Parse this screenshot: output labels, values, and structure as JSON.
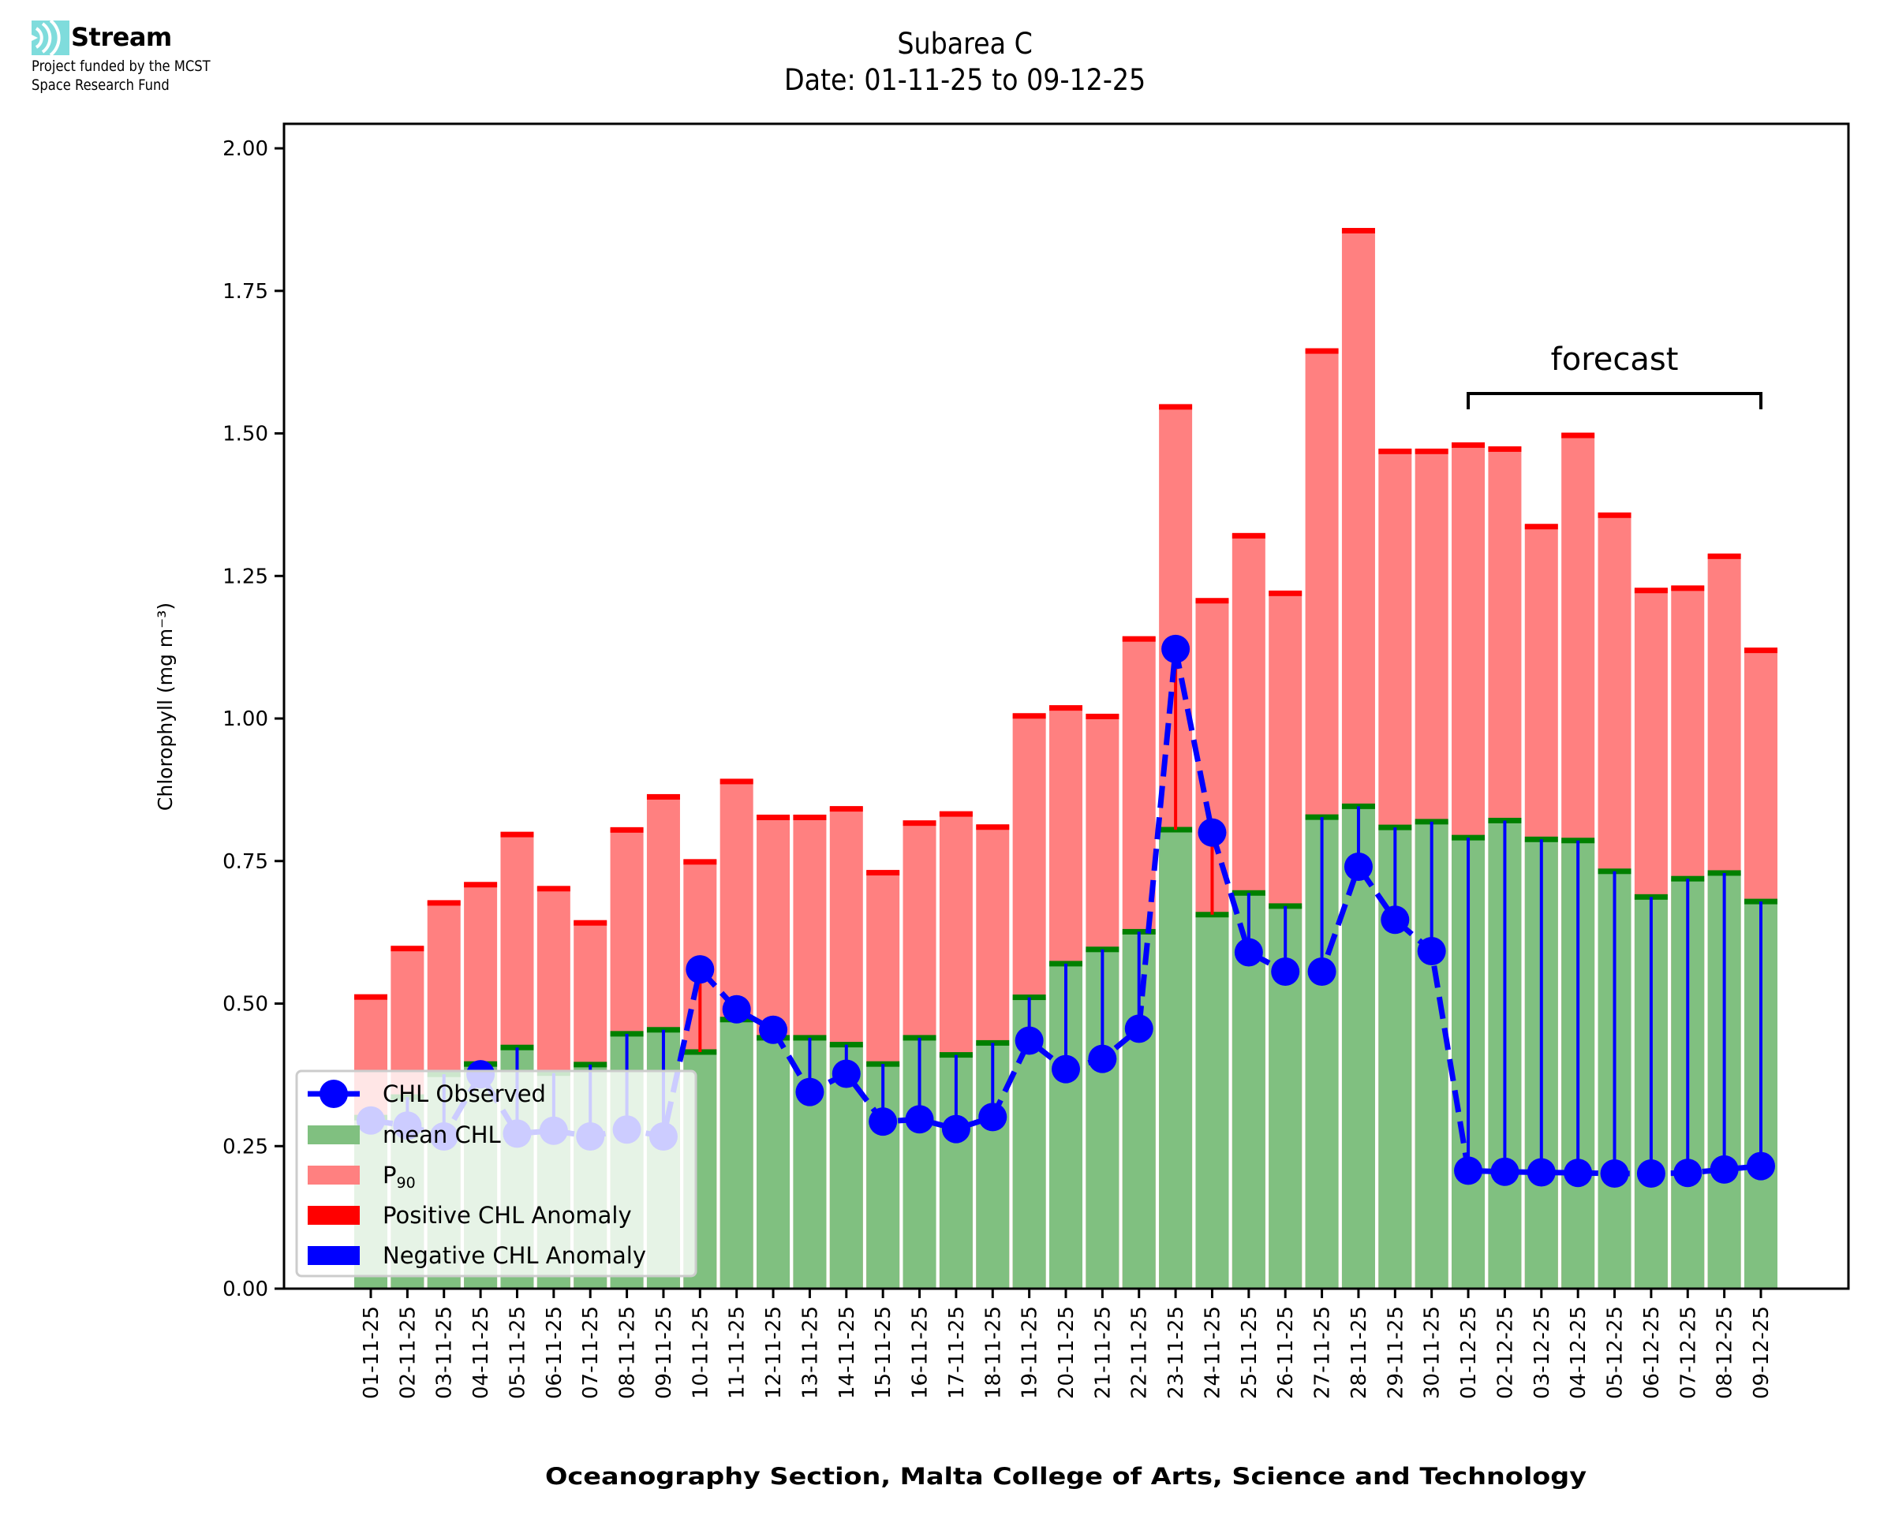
{
  "logo": {
    "name": "Stream",
    "subtitle_lines": [
      "Project funded by the MCST",
      "Space Research Fund"
    ],
    "icon": "stream-waves-icon",
    "color": "#7fdcdc"
  },
  "colors": {
    "mean": "#80c080",
    "mean_cap": "#008000",
    "p90": "#ff8080",
    "p90_cap": "#ff0000",
    "positive_anomaly": "#ff0000",
    "negative_anomaly": "#0000ff",
    "observed": "#0000ff"
  },
  "chart_data": {
    "type": "bar",
    "title": "Subarea C",
    "subtitle": "Date: 01-11-25 to 09-12-25",
    "xlabel": "Oceanography Section, Malta College of Arts, Science and Technology",
    "ylabel": "Chlorophyll (mg m⁻³)",
    "ylim": [
      0,
      2.043
    ],
    "yticks": [
      0.0,
      0.25,
      0.5,
      0.75,
      1.0,
      1.25,
      1.5,
      1.75,
      2.0
    ],
    "ytick_labels": [
      "0.00",
      "0.25",
      "0.50",
      "0.75",
      "1.00",
      "1.25",
      "1.50",
      "1.75",
      "2.00"
    ],
    "grid": false,
    "legend_position": "lower-left",
    "legend": [
      {
        "label": "CHL Observed",
        "kind": "line-marker"
      },
      {
        "label": "mean CHL",
        "kind": "patch-mean"
      },
      {
        "label": "P",
        "sub": "90",
        "kind": "patch-p90"
      },
      {
        "label": "Positive CHL Anomaly",
        "kind": "patch-pos"
      },
      {
        "label": "Negative CHL Anomaly",
        "kind": "patch-neg"
      }
    ],
    "categories": [
      "01-11-25",
      "02-11-25",
      "03-11-25",
      "04-11-25",
      "05-11-25",
      "06-11-25",
      "07-11-25",
      "08-11-25",
      "09-11-25",
      "10-11-25",
      "11-11-25",
      "12-11-25",
      "13-11-25",
      "14-11-25",
      "15-11-25",
      "16-11-25",
      "17-11-25",
      "18-11-25",
      "19-11-25",
      "20-11-25",
      "21-11-25",
      "22-11-25",
      "23-11-25",
      "24-11-25",
      "25-11-25",
      "26-11-25",
      "27-11-25",
      "28-11-25",
      "29-11-25",
      "30-11-25",
      "01-12-25",
      "02-12-25",
      "03-12-25",
      "04-12-25",
      "05-12-25",
      "06-12-25",
      "07-12-25",
      "08-12-25",
      "09-12-25"
    ],
    "series": [
      {
        "name": "P90",
        "values": [
          0.515,
          0.6,
          0.68,
          0.712,
          0.8,
          0.705,
          0.645,
          0.808,
          0.866,
          0.752,
          0.893,
          0.83,
          0.83,
          0.845,
          0.733,
          0.82,
          0.836,
          0.813,
          1.008,
          1.022,
          1.007,
          1.143,
          1.55,
          1.21,
          1.324,
          1.223,
          1.648,
          1.859,
          1.472,
          1.472,
          1.483,
          1.476,
          1.34,
          1.5,
          1.36,
          1.228,
          1.232,
          1.288,
          1.123
        ]
      },
      {
        "name": "mean CHL",
        "values": [
          0.3,
          0.336,
          0.376,
          0.394,
          0.423,
          0.378,
          0.393,
          0.447,
          0.454,
          0.415,
          0.472,
          0.44,
          0.44,
          0.428,
          0.394,
          0.44,
          0.41,
          0.431,
          0.511,
          0.57,
          0.595,
          0.626,
          0.805,
          0.656,
          0.694,
          0.671,
          0.827,
          0.846,
          0.809,
          0.819,
          0.791,
          0.821,
          0.788,
          0.786,
          0.732,
          0.687,
          0.719,
          0.729,
          0.679
        ]
      },
      {
        "name": "CHL Observed",
        "values": [
          0.295,
          0.286,
          0.267,
          0.376,
          0.272,
          0.277,
          0.267,
          0.279,
          0.267,
          0.56,
          0.49,
          0.454,
          0.345,
          0.377,
          0.293,
          0.297,
          0.28,
          0.301,
          0.435,
          0.385,
          0.403,
          0.456,
          1.122,
          0.8,
          0.59,
          0.556,
          0.556,
          0.74,
          0.647,
          0.592,
          0.207,
          0.205,
          0.204,
          0.203,
          0.202,
          0.202,
          0.203,
          0.209,
          0.215
        ]
      }
    ],
    "annotations": [
      {
        "text": "forecast",
        "from": "01-12-25",
        "to": "09-12-25",
        "y": 1.57
      }
    ]
  }
}
